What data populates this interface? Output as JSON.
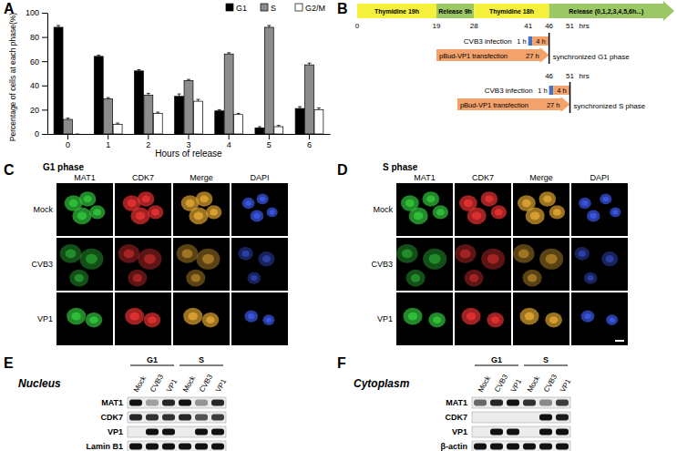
{
  "panel_labels": [
    "A",
    "B",
    "C",
    "D",
    "E",
    "F"
  ],
  "chart_data": {
    "type": "bar",
    "x_label": "Hours of release",
    "y_label": "Percentage of cells at each phase(%)",
    "categories": [
      "0",
      "1",
      "2",
      "3",
      "4",
      "5",
      "6"
    ],
    "series": [
      {
        "name": "G1",
        "color": "#000000",
        "values": [
          88,
          64,
          52,
          31,
          19,
          5,
          21
        ],
        "errors": [
          1.5,
          1,
          1,
          2,
          1,
          1,
          1.5
        ]
      },
      {
        "name": "S",
        "color": "#8c8c8c",
        "values": [
          12,
          29,
          32,
          44,
          66,
          88,
          57
        ],
        "errors": [
          1,
          1,
          1.5,
          1,
          1,
          1.5,
          1.5
        ]
      },
      {
        "name": "G2/M",
        "color": "#ffffff",
        "values": [
          0,
          8,
          17,
          27,
          16,
          6,
          20
        ],
        "errors": [
          0,
          1,
          1,
          1.5,
          1,
          1,
          1.5
        ]
      }
    ],
    "ylim": [
      0,
      100
    ],
    "yticks": [
      0,
      20,
      40,
      60,
      80,
      100
    ],
    "legend": "upper right"
  },
  "timeline": {
    "unit": "hrs",
    "range": [
      0,
      76
    ],
    "bar": [
      {
        "label": "Thymidine 19h",
        "start": 0,
        "end": 19,
        "color": "#f5f03c"
      },
      {
        "label": "Release 9h",
        "start": 19,
        "end": 28,
        "color": "#9cc765"
      },
      {
        "label": "Thymidine 18h",
        "start": 28,
        "end": 46,
        "color": "#f5f03c"
      },
      {
        "label": "Release (0,1,2,3,4,5,6h...)",
        "start": 46,
        "end": 76,
        "color": "#9cc765"
      }
    ],
    "ticks": [
      0,
      19,
      28,
      41,
      46,
      51
    ],
    "rows": [
      {
        "infection_label": "CVB3 infection",
        "infection": [
          {
            "label": "1 h",
            "start": 41,
            "end": 42,
            "color": "#4472c4"
          },
          {
            "label": "4 h",
            "start": 42,
            "end": 46,
            "color": "#f4a26b"
          }
        ],
        "transfection": {
          "label": "pBud-VP1 transfection",
          "duration": "27 h",
          "start": 19,
          "end": 46,
          "color": "#f4a26b"
        },
        "sync_at": 46,
        "sync_label": "synchronized G1 phase"
      },
      {
        "ticks": [
          46,
          51
        ],
        "infection_label": "CVB3 infection",
        "infection": [
          {
            "label": "1 h",
            "start": 46,
            "end": 47,
            "color": "#4472c4"
          },
          {
            "label": "4 h",
            "start": 47,
            "end": 51,
            "color": "#f4a26b"
          }
        ],
        "transfection": {
          "label": "pBud-VP1 transfection",
          "duration": "27 h",
          "start": 24,
          "end": 51,
          "color": "#f4a26b"
        },
        "sync_at": 51,
        "sync_label": "synchronized S phase"
      }
    ]
  },
  "microscopy": [
    {
      "title": "G1 phase",
      "columns": [
        "MAT1",
        "CDK7",
        "Merge",
        "DAPI"
      ],
      "rows": [
        "Mock",
        "CVB3",
        "VP1"
      ]
    },
    {
      "title": "S phase",
      "columns": [
        "MAT1",
        "CDK7",
        "Merge",
        "DAPI"
      ],
      "rows": [
        "Mock",
        "CVB3",
        "VP1"
      ]
    }
  ],
  "blots": [
    {
      "title": "Nucleus",
      "groups": [
        "G1",
        "S"
      ],
      "lanes": [
        "Mock",
        "CVB3",
        "VP1",
        "Mock",
        "CVB3",
        "VP1"
      ],
      "proteins": [
        "MAT1",
        "CDK7",
        "VP1",
        "Lamin B1"
      ]
    },
    {
      "title": "Cytoplasm",
      "groups": [
        "G1",
        "S"
      ],
      "lanes": [
        "Mock",
        "CVB3",
        "VP1",
        "Mock",
        "CVB3",
        "VP1"
      ],
      "proteins": [
        "MAT1",
        "CDK7",
        "VP1",
        "β-actin"
      ]
    }
  ]
}
